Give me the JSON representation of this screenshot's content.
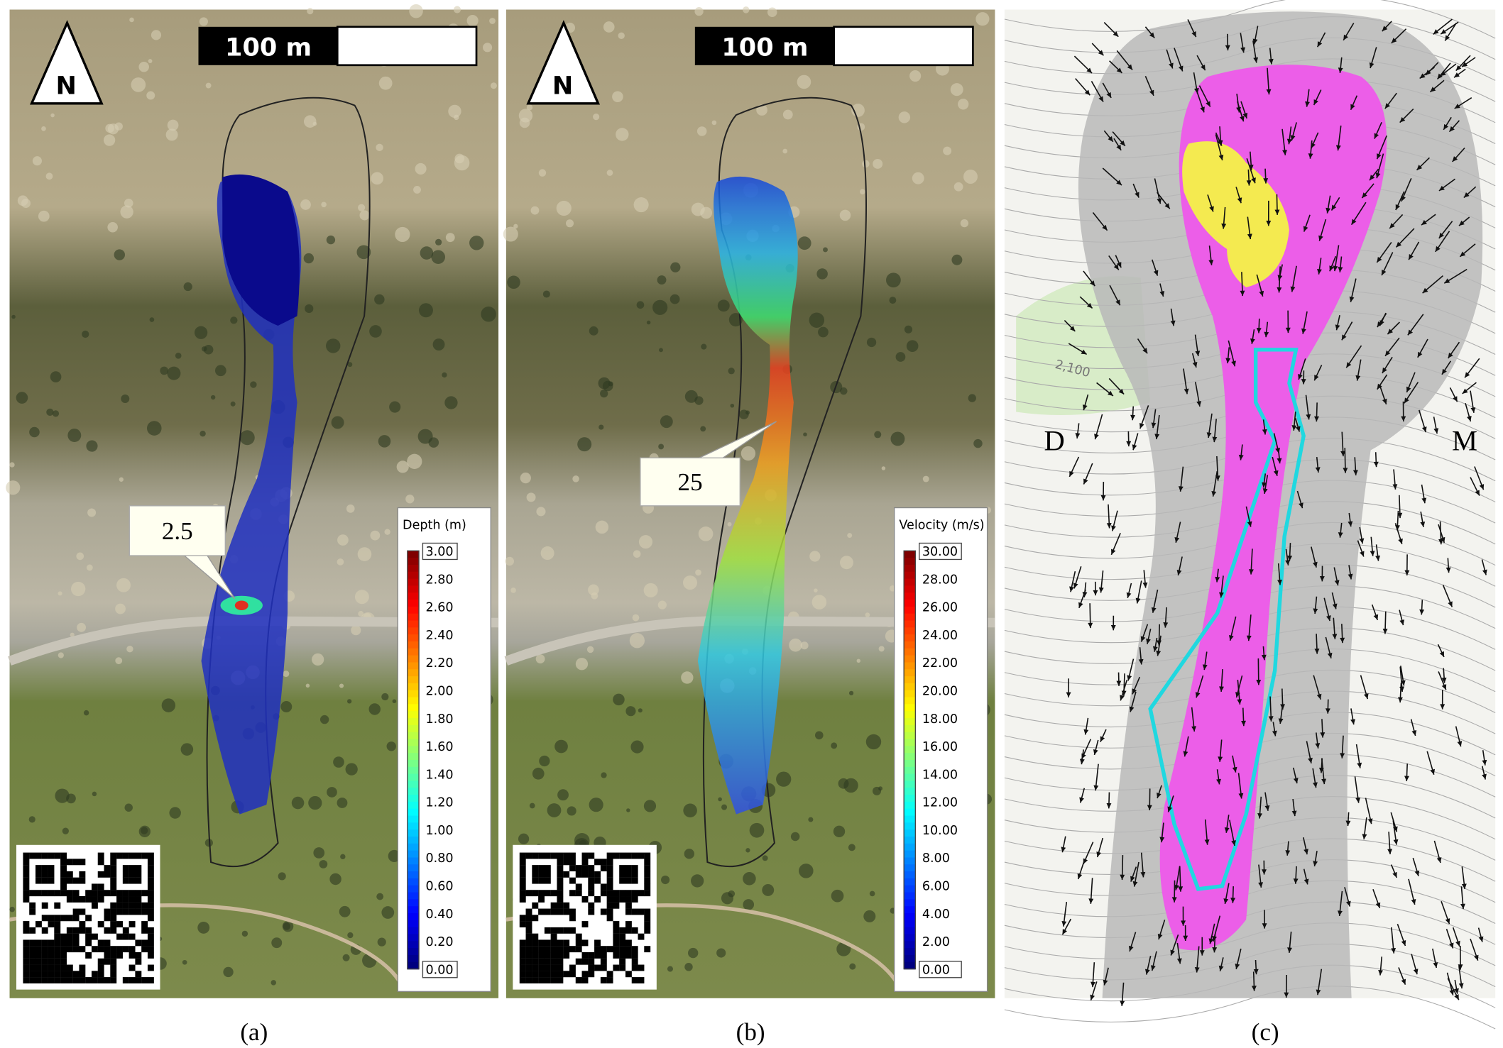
{
  "panels": [
    {
      "label": "(a)",
      "scale_bar": "100 m",
      "north": "N",
      "callout": "2.5",
      "legend": {
        "title": "Depth (m)",
        "labels": [
          "3.00",
          "2.80",
          "2.60",
          "2.40",
          "2.20",
          "2.00",
          "1.80",
          "1.60",
          "1.40",
          "1.20",
          "1.00",
          "0.80",
          "0.60",
          "0.40",
          "0.20",
          "0.00"
        ]
      }
    },
    {
      "label": "(b)",
      "scale_bar": "100 m",
      "north": "N",
      "callout": "25",
      "legend": {
        "title": "Velocity (m/s)",
        "labels": [
          "30.00",
          "28.00",
          "26.00",
          "24.00",
          "22.00",
          "20.00",
          "18.00",
          "16.00",
          "14.00",
          "12.00",
          "10.00",
          "8.00",
          "6.00",
          "4.00",
          "2.00",
          "0.00"
        ]
      }
    },
    {
      "label": "(c)",
      "map_labels": [
        "D",
        "M",
        "2,100"
      ]
    }
  ]
}
